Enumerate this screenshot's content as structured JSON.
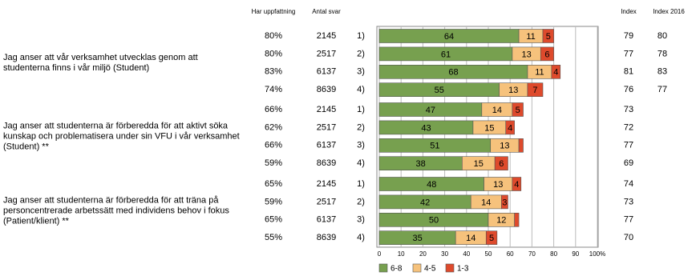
{
  "chart_data": {
    "type": "bar",
    "orientation": "horizontal",
    "stacked": true,
    "headers": {
      "share": "Har uppfattning",
      "count": "Antal svar",
      "index": "Index",
      "index_prev": "Index 2016"
    },
    "questions": [
      "Jag anser att vår verksamhet utvecklas genom att studenterna finns i vår miljö (Student)",
      "Jag anser att studenterna är förberedda för att aktivt söka kunskap och problematisera  under sin VFU i vår verksamhet (Student) **",
      "Jag anser att studenterna är förberedda för att träna på personcentrerade arbetssätt med individens behov i fokus (Patient/klient) **"
    ],
    "categories": [
      "1)",
      "2)",
      "3)",
      "4)",
      "1)",
      "2)",
      "3)",
      "4)",
      "1)",
      "2)",
      "3)",
      "4)"
    ],
    "share": [
      "80%",
      "80%",
      "83%",
      "74%",
      "66%",
      "62%",
      "66%",
      "59%",
      "65%",
      "59%",
      "65%",
      "55%"
    ],
    "count": [
      2145,
      2517,
      6137,
      8639,
      2145,
      2517,
      6137,
      8639,
      2145,
      2517,
      6137,
      8639
    ],
    "index": [
      79,
      77,
      81,
      76,
      73,
      72,
      77,
      69,
      74,
      73,
      77,
      70
    ],
    "index_prev": [
      80,
      78,
      83,
      77,
      null,
      null,
      null,
      null,
      null,
      null,
      null,
      null
    ],
    "series": [
      {
        "name": "6-8",
        "color": "#77a04f",
        "values": [
          64,
          61,
          68,
          55,
          47,
          43,
          51,
          38,
          48,
          42,
          50,
          35
        ]
      },
      {
        "name": "4-5",
        "color": "#f6c27c",
        "values": [
          11,
          13,
          11,
          13,
          14,
          15,
          13,
          15,
          13,
          14,
          12,
          14
        ]
      },
      {
        "name": "1-3",
        "color": "#de4a2c",
        "values": [
          5,
          6,
          4,
          7,
          5,
          4,
          2,
          6,
          4,
          3,
          2,
          5
        ]
      }
    ],
    "xlim": [
      0,
      100
    ],
    "xticks": [
      0,
      10,
      20,
      30,
      40,
      50,
      60,
      70,
      80,
      90,
      {
        "value": 100,
        "label": "100%"
      }
    ],
    "grid": true
  }
}
